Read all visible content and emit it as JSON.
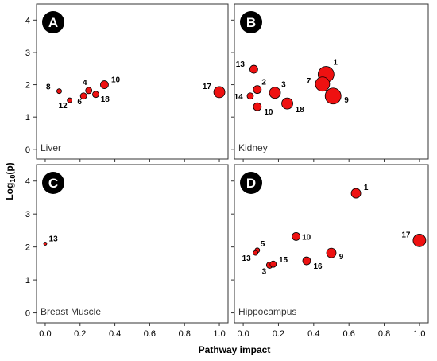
{
  "figure": {
    "xlabel": "Pathway impact",
    "ylabel_base": "Log",
    "ylabel_sub": "10",
    "ylabel_tail": "(p)"
  },
  "colors": {
    "point_fill": "#ee1111",
    "point_stroke": "#000000",
    "badge_fill": "#000000",
    "badge_text": "#ffffff",
    "axis": "#333333"
  },
  "chart_data": [
    {
      "type": "scatter",
      "badge": "A",
      "panel_label": "Liver",
      "xlim": [
        -0.05,
        1.05
      ],
      "ylim": [
        -0.3,
        4.5
      ],
      "xticks": [
        "0.0",
        "0.2",
        "0.4",
        "0.6",
        "0.8",
        "1.0"
      ],
      "yticks": [
        "0",
        "1",
        "2",
        "3",
        "4"
      ],
      "points": [
        {
          "label": "8",
          "x": 0.08,
          "y": 1.8,
          "r": 3
        },
        {
          "label": "12",
          "x": 0.14,
          "y": 1.52,
          "r": 3
        },
        {
          "label": "6",
          "x": 0.22,
          "y": 1.65,
          "r": 4
        },
        {
          "label": "4",
          "x": 0.25,
          "y": 1.82,
          "r": 4
        },
        {
          "label": "18",
          "x": 0.29,
          "y": 1.7,
          "r": 4
        },
        {
          "label": "10",
          "x": 0.34,
          "y": 2.0,
          "r": 5
        },
        {
          "label": "17",
          "x": 1.0,
          "y": 1.77,
          "r": 7
        }
      ]
    },
    {
      "type": "scatter",
      "badge": "B",
      "panel_label": "Kidney",
      "xlim": [
        -0.05,
        1.05
      ],
      "ylim": [
        -0.3,
        4.5
      ],
      "xticks": [
        "0.0",
        "0.2",
        "0.4",
        "0.6",
        "0.8",
        "1.0"
      ],
      "yticks": [
        "0",
        "1",
        "2",
        "3",
        "4"
      ],
      "points": [
        {
          "label": "13",
          "x": 0.06,
          "y": 2.48,
          "r": 5
        },
        {
          "label": "2",
          "x": 0.08,
          "y": 1.85,
          "r": 5
        },
        {
          "label": "14",
          "x": 0.04,
          "y": 1.65,
          "r": 4
        },
        {
          "label": "10",
          "x": 0.08,
          "y": 1.32,
          "r": 5
        },
        {
          "label": "3",
          "x": 0.18,
          "y": 1.75,
          "r": 7
        },
        {
          "label": "18",
          "x": 0.25,
          "y": 1.42,
          "r": 7
        },
        {
          "label": "1",
          "x": 0.47,
          "y": 2.32,
          "r": 10
        },
        {
          "label": "7",
          "x": 0.45,
          "y": 2.02,
          "r": 9
        },
        {
          "label": "9",
          "x": 0.51,
          "y": 1.65,
          "r": 10
        }
      ]
    },
    {
      "type": "scatter",
      "badge": "C",
      "panel_label": "Breast Muscle",
      "xlim": [
        -0.05,
        1.05
      ],
      "ylim": [
        -0.3,
        4.5
      ],
      "xticks": [
        "0.0",
        "0.2",
        "0.4",
        "0.6",
        "0.8",
        "1.0"
      ],
      "yticks": [
        "0",
        "1",
        "2",
        "3",
        "4"
      ],
      "points": [
        {
          "label": "13",
          "x": 0.0,
          "y": 2.1,
          "r": 2
        }
      ]
    },
    {
      "type": "scatter",
      "badge": "D",
      "panel_label": "Hippocampus",
      "xlim": [
        -0.05,
        1.05
      ],
      "ylim": [
        -0.3,
        4.5
      ],
      "xticks": [
        "0.0",
        "0.2",
        "0.4",
        "0.6",
        "0.8",
        "1.0"
      ],
      "yticks": [
        "0",
        "1",
        "2",
        "3",
        "4"
      ],
      "points": [
        {
          "label": "5",
          "x": 0.08,
          "y": 1.9,
          "r": 3
        },
        {
          "label": "13",
          "x": 0.07,
          "y": 1.82,
          "r": 3
        },
        {
          "label": "3",
          "x": 0.15,
          "y": 1.45,
          "r": 4
        },
        {
          "label": "15",
          "x": 0.17,
          "y": 1.48,
          "r": 4
        },
        {
          "label": "16",
          "x": 0.36,
          "y": 1.58,
          "r": 5
        },
        {
          "label": "10",
          "x": 0.3,
          "y": 2.32,
          "r": 5
        },
        {
          "label": "9",
          "x": 0.5,
          "y": 1.82,
          "r": 6
        },
        {
          "label": "1",
          "x": 0.64,
          "y": 3.63,
          "r": 6
        },
        {
          "label": "17",
          "x": 1.0,
          "y": 2.2,
          "r": 8
        }
      ]
    }
  ]
}
